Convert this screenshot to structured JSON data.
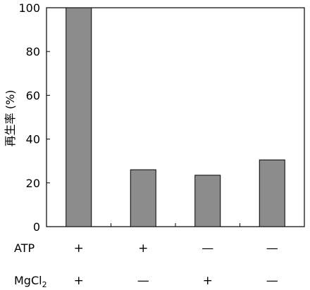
{
  "chart_data": {
    "type": "bar",
    "ylabel": "再生率 (%)",
    "ylim": [
      0,
      100
    ],
    "yticks": [
      0,
      20,
      40,
      60,
      80,
      100
    ],
    "grid": false,
    "values": [
      100,
      26,
      23.5,
      30.5
    ],
    "conditions": [
      {
        "label": "ATP",
        "label_sub": "",
        "signs": [
          "+",
          "+",
          "—",
          "—"
        ]
      },
      {
        "label": "MgCl",
        "label_sub": "2",
        "signs": [
          "+",
          "—",
          "+",
          "—"
        ]
      }
    ],
    "colors": {
      "bar": "#8c8c8c",
      "axis": "#000000"
    }
  }
}
